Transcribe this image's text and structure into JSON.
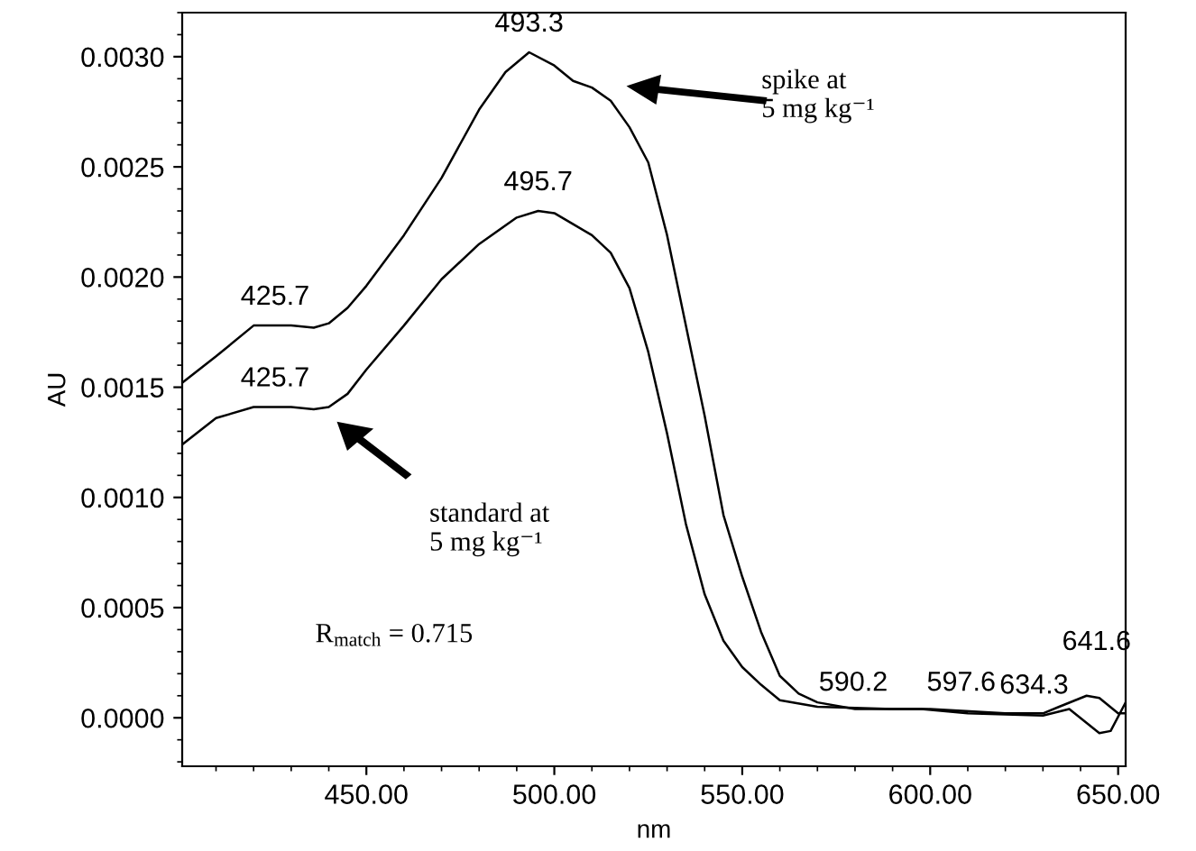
{
  "chart_data": {
    "type": "line",
    "xlabel": "nm",
    "ylabel": "AU",
    "xlim": [
      401,
      652
    ],
    "ylim": [
      -0.00022,
      0.0032
    ],
    "xticks": [
      {
        "value": 450,
        "label": "450.00"
      },
      {
        "value": 500,
        "label": "500.00"
      },
      {
        "value": 550,
        "label": "550.00"
      },
      {
        "value": 600,
        "label": "600.00"
      },
      {
        "value": 650,
        "label": "650.00"
      }
    ],
    "yticks": [
      {
        "value": 0,
        "label": "0.0000"
      },
      {
        "value": 0.0005,
        "label": "0.0005"
      },
      {
        "value": 0.001,
        "label": "0.0010"
      },
      {
        "value": 0.0015,
        "label": "0.0015"
      },
      {
        "value": 0.002,
        "label": "0.0020"
      },
      {
        "value": 0.0025,
        "label": "0.0025"
      },
      {
        "value": 0.003,
        "label": "0.0030"
      }
    ],
    "grid": false,
    "legend": false,
    "marker": "none",
    "line_style": "solid",
    "series": [
      {
        "color": "#000000",
        "x": [
          401,
          410,
          420,
          425.7,
          430,
          436,
          440,
          445,
          450,
          460,
          470,
          480,
          487,
          493.3,
          500,
          505,
          510,
          515,
          520,
          525,
          530,
          535,
          540,
          545,
          550,
          555,
          560,
          565,
          570,
          580,
          600,
          620,
          630,
          634.3,
          641.6,
          645,
          650,
          652
        ],
        "values": [
          0.00152,
          0.00164,
          0.00178,
          0.00178,
          0.00178,
          0.00177,
          0.00179,
          0.00186,
          0.00196,
          0.00219,
          0.00245,
          0.00276,
          0.00293,
          0.00302,
          0.00296,
          0.00289,
          0.00286,
          0.0028,
          0.00268,
          0.00252,
          0.00219,
          0.00178,
          0.00137,
          0.00092,
          0.00064,
          0.00039,
          0.00019,
          0.00011,
          7e-05,
          4e-05,
          4e-05,
          2e-05,
          2e-05,
          5e-05,
          0.0001,
          9e-05,
          2e-05,
          2e-05
        ]
      },
      {
        "color": "#000000",
        "x": [
          401,
          410,
          420,
          425.7,
          430,
          436,
          440,
          445,
          450,
          460,
          470,
          480,
          490,
          495.7,
          500,
          505,
          510,
          515,
          520,
          525,
          530,
          535,
          540,
          545,
          550,
          555,
          560,
          570,
          590,
          597.6,
          610,
          630,
          637,
          645,
          648,
          652
        ],
        "values": [
          0.00124,
          0.00136,
          0.00141,
          0.00141,
          0.00141,
          0.0014,
          0.00141,
          0.00147,
          0.00158,
          0.00178,
          0.00199,
          0.00215,
          0.00227,
          0.0023,
          0.00229,
          0.00224,
          0.00219,
          0.00211,
          0.00195,
          0.00166,
          0.00129,
          0.00088,
          0.00056,
          0.00035,
          0.00023,
          0.00015,
          8e-05,
          5e-05,
          4e-05,
          4e-05,
          2e-05,
          1e-05,
          4e-05,
          -7e-05,
          -6e-05,
          7e-05
        ]
      }
    ],
    "annotations": [
      {
        "text": "493.3",
        "x": 493.3,
        "y": 0.00302
      },
      {
        "text": "495.7",
        "x": 495.7,
        "y": 0.0023
      },
      {
        "text": "425.7",
        "x": 425.7,
        "y": 0.00178
      },
      {
        "text": "425.7",
        "x": 425.7,
        "y": 0.00141
      },
      {
        "text": "590.2",
        "x": 590.2,
        "y": 4e-05
      },
      {
        "text": "597.6",
        "x": 597.6,
        "y": 4e-05
      },
      {
        "text": "634.3",
        "x": 634.3,
        "y": 5e-05
      },
      {
        "text": "641.6",
        "x": 641.6,
        "y": 0.0001
      },
      "spike at\n5 mg kg⁻¹",
      "standard at\n5 mg kg⁻¹",
      "R$_{match}$ = 0.715"
    ]
  }
}
